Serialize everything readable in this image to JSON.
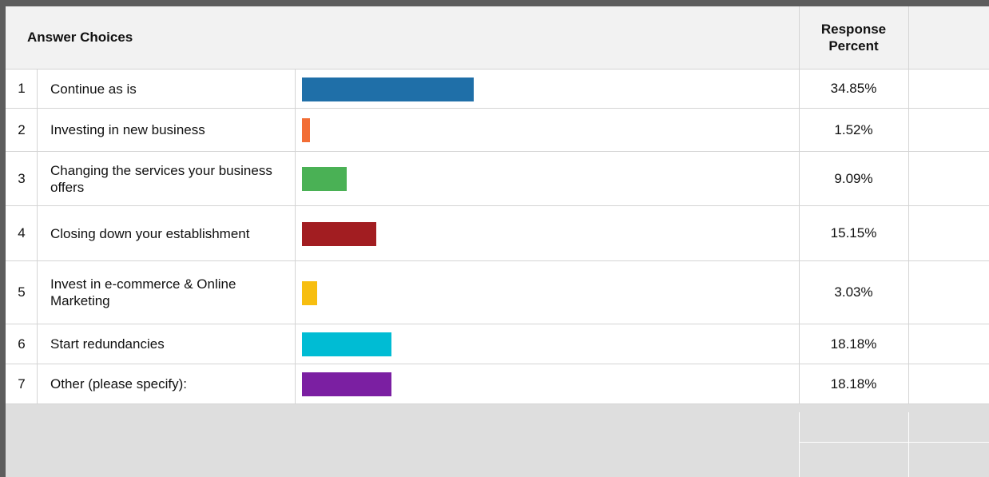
{
  "table": {
    "header": {
      "answer_choices": "Answer Choices",
      "response_percent": "Response\nPercent"
    }
  },
  "chart_data": {
    "type": "bar",
    "orientation": "horizontal",
    "categories": [
      "Continue as is",
      "Investing in new business",
      "Changing the services your business offers",
      "Closing down your establishment",
      "Invest in e-commerce & Online Marketing",
      "Start redundancies",
      "Other (please specify):"
    ],
    "values": [
      34.85,
      1.52,
      9.09,
      15.15,
      3.03,
      18.18,
      18.18
    ],
    "value_labels": [
      "34.85%",
      "1.52%",
      "9.09%",
      "15.15%",
      "3.03%",
      "18.18%",
      "18.18%"
    ],
    "row_numbers": [
      "1",
      "2",
      "3",
      "4",
      "5",
      "6",
      "7"
    ],
    "colors": [
      "#1f6fa8",
      "#f26d35",
      "#4ab155",
      "#a21d21",
      "#f7be10",
      "#00bcd4",
      "#7b1fa2"
    ],
    "xlim": [
      0,
      100
    ]
  }
}
